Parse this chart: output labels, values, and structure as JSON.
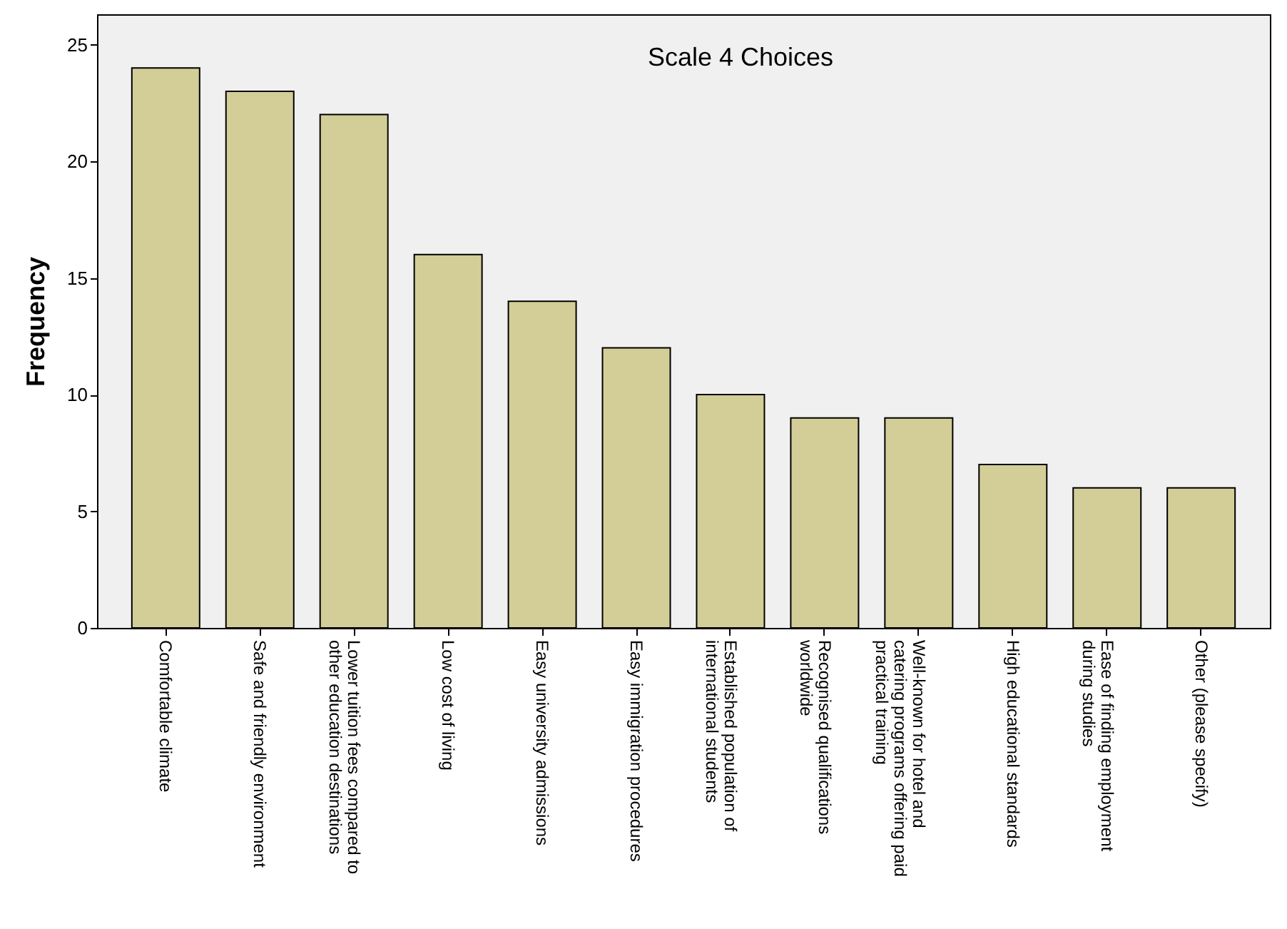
{
  "chart_data": {
    "type": "bar",
    "title": "Scale 4 Choices",
    "ylabel": "Frequency",
    "categories": [
      "Comfortable climate",
      "Safe and friendly environment",
      "Lower tuition fees compared to other education destinations",
      "Low cost of living",
      "Easy university admissions",
      "Easy immigration procedures",
      "Established population of international students",
      "Recognised qualifications worldwide",
      "Well-known for hotel and catering programs offering paid practical training",
      "High educational standards",
      "Ease of finding employment during studies",
      "Other (please specify)"
    ],
    "values": [
      24,
      23,
      22,
      16,
      14,
      12,
      10,
      9,
      9,
      7,
      6,
      6
    ],
    "color": "#d3ce97",
    "ylim": [
      0,
      26.3
    ],
    "yticks": [
      0,
      5,
      10,
      15,
      20,
      25
    ],
    "grid": false
  }
}
